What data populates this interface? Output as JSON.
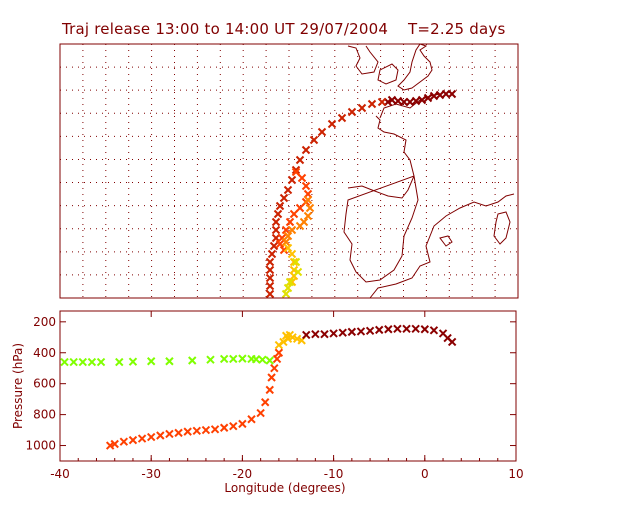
{
  "title": "Traj release 13:00 to 14:00 UT 29/07/2004    T=2.25 days",
  "chart_data": [
    {
      "type": "map",
      "description_of_content": "trajectory path over map",
      "lon_range": [
        -40,
        10
      ],
      "lat_range_note": "unlabeled",
      "marker": "x",
      "colors": [
        "#8b0000",
        "#cc2200",
        "#ff4000",
        "#ff8000",
        "#ffc000",
        "#e0e000"
      ]
    },
    {
      "type": "scatter",
      "xlabel": "Longitude  (degrees)",
      "ylabel": "Pressure  (hPa)",
      "xlim": [
        -40,
        10
      ],
      "ylim": [
        1100,
        130
      ],
      "x_ticks": [
        "-40",
        "-30",
        "-20",
        "-10",
        "0",
        "10"
      ],
      "y_ticks": [
        "200",
        "400",
        "600",
        "800",
        "1000"
      ],
      "marker": "x",
      "series": [
        {
          "color": "#80ff00",
          "x": [
            -39.5,
            -38.5,
            -37.5,
            -36.5,
            -35.5,
            -33.5,
            -32,
            -30,
            -28,
            -25.5,
            -23.5,
            -22,
            -21,
            -20,
            -19,
            -18.5,
            -17.8,
            -17
          ],
          "y": [
            460,
            460,
            460,
            460,
            460,
            460,
            458,
            455,
            455,
            450,
            445,
            440,
            440,
            438,
            440,
            442,
            445,
            450
          ]
        },
        {
          "color": "#ffc000",
          "x": [
            -16,
            -15.5,
            -15,
            -14.5,
            -14,
            -13.5,
            -15.2,
            -14.8
          ],
          "y": [
            350,
            330,
            310,
            300,
            310,
            320,
            290,
            285
          ]
        },
        {
          "color": "#8b0000",
          "x": [
            -13,
            -12,
            -11,
            -10,
            -9,
            -8,
            -7,
            -6,
            -5,
            -4,
            -3,
            -2,
            -1,
            0,
            1,
            2,
            2.5,
            3
          ],
          "y": [
            285,
            280,
            280,
            275,
            270,
            265,
            262,
            258,
            252,
            248,
            245,
            245,
            245,
            248,
            255,
            275,
            305,
            330
          ]
        },
        {
          "color": "#ff4000",
          "x": [
            -34.5,
            -34,
            -33,
            -32,
            -31,
            -30,
            -29,
            -28,
            -27,
            -26,
            -25,
            -24,
            -23,
            -22,
            -21,
            -20,
            -19,
            -18,
            -17.5,
            -17,
            -16.8,
            -16.5,
            -16.2,
            -16
          ],
          "y": [
            1000,
            990,
            975,
            965,
            955,
            945,
            935,
            925,
            918,
            910,
            905,
            900,
            895,
            885,
            875,
            860,
            830,
            790,
            720,
            640,
            560,
            500,
            440,
            400
          ]
        }
      ]
    }
  ]
}
